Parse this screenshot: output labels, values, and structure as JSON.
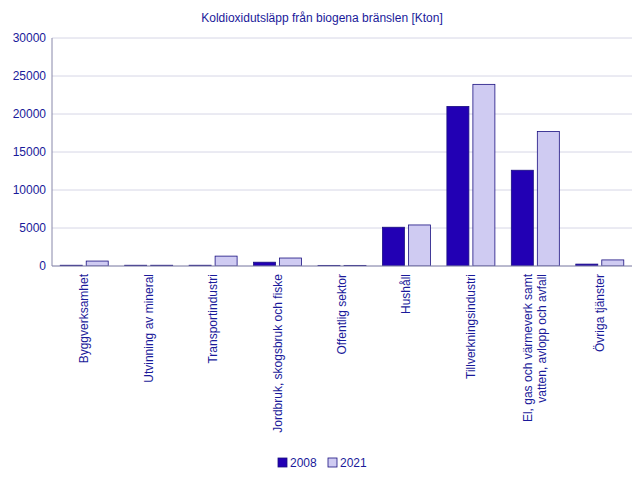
{
  "chart_data": {
    "type": "bar",
    "title": "Koldioxidutsläpp från biogena bränslen [Kton]",
    "categories": [
      "Byggverksamhet",
      "Utvinning av mineral",
      "Transportindustri",
      "Jordbruk, skogsbruk och fiske",
      "Offentlig sektor",
      "Hushåll",
      "Tillverkningsindustri",
      "El, gas och värmeverk samt vatten, avlopp och avfall",
      "Övriga tjänster"
    ],
    "series": [
      {
        "name": "2008",
        "color": "#2200b4",
        "values": [
          100,
          100,
          100,
          500,
          80,
          5100,
          21000,
          12600,
          250
        ]
      },
      {
        "name": "2021",
        "color": "#cfcbf2",
        "values": [
          650,
          100,
          1300,
          1050,
          80,
          5400,
          23900,
          17700,
          800
        ]
      }
    ],
    "ylim": [
      0,
      30000
    ],
    "yticks": [
      0,
      5000,
      10000,
      15000,
      20000,
      25000,
      30000
    ],
    "grid": true,
    "legend": "bottom"
  }
}
